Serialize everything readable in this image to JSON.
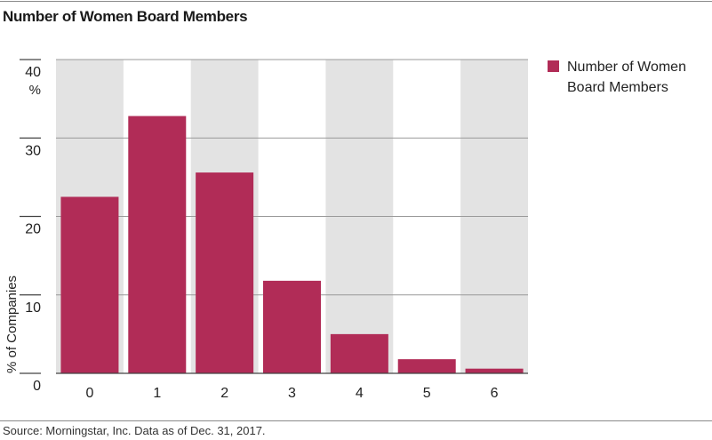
{
  "chart_data": {
    "type": "bar",
    "title": "Number of Women Board Members",
    "categories": [
      "0",
      "1",
      "2",
      "3",
      "4",
      "5",
      "6"
    ],
    "series": [
      {
        "name": "Number of Women Board Members",
        "values": [
          22.5,
          32.8,
          25.6,
          11.8,
          5.0,
          1.8,
          0.6
        ]
      }
    ],
    "ylabel": "% of Companies",
    "y_ticks": [
      "0",
      "10",
      "20",
      "30",
      "40"
    ],
    "y_top_unit": "%",
    "ylim": [
      0,
      40
    ],
    "grid": true,
    "legend_position": "right",
    "colors": {
      "bar": "#b12c57",
      "band": "#e3e3e3",
      "gridline": "#9a9a9a"
    }
  },
  "source": "Source: Morningstar, Inc. Data as of Dec. 31, 2017."
}
